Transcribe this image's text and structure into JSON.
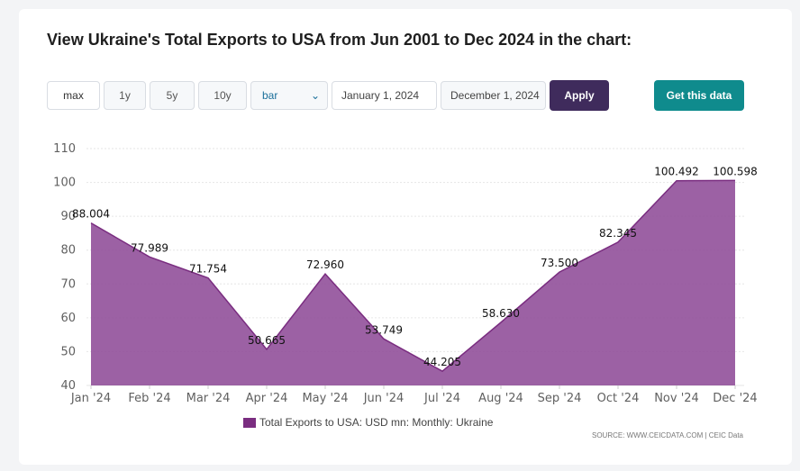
{
  "title": "View Ukraine's Total Exports to USA from Jun 2001 to Dec 2024 in the chart:",
  "controls": {
    "range_buttons": [
      "max",
      "1y",
      "5y",
      "10y"
    ],
    "chart_type": "bar",
    "start_date": "January 1, 2024",
    "end_date": "December 1, 2024",
    "apply_label": "Apply",
    "get_data_label": "Get this data"
  },
  "legend_label": "Total Exports to USA: USD mn: Monthly: Ukraine",
  "source": "SOURCE: WWW.CEICDATA.COM | CEIC Data",
  "colors": {
    "area_fill": "#8e4b97",
    "area_line": "#7a2d80",
    "apply_bg": "#3f2b5c",
    "get_data_bg": "#0f8b8d"
  },
  "chart_data": {
    "type": "area",
    "categories": [
      "Jan '24",
      "Feb '24",
      "Mar '24",
      "Apr '24",
      "May '24",
      "Jun '24",
      "Jul '24",
      "Aug '24",
      "Sep '24",
      "Oct '24",
      "Nov '24",
      "Dec '24"
    ],
    "series": [
      {
        "name": "Total Exports to USA: USD mn: Monthly: Ukraine",
        "values": [
          88.004,
          77.989,
          71.754,
          50.665,
          72.96,
          53.749,
          44.205,
          58.63,
          73.5,
          82.345,
          100.492,
          100.598
        ],
        "labels": [
          "88.004",
          "77.989",
          "71.754",
          "50.665",
          "72.960",
          "53.749",
          "44.205",
          "58.630",
          "73.500",
          "82.345",
          "100.492",
          "100.598"
        ]
      }
    ],
    "ylim": [
      40,
      110
    ],
    "yticks": [
      40,
      50,
      60,
      70,
      80,
      90,
      100,
      110
    ],
    "grid": true,
    "legend_position": "bottom"
  }
}
